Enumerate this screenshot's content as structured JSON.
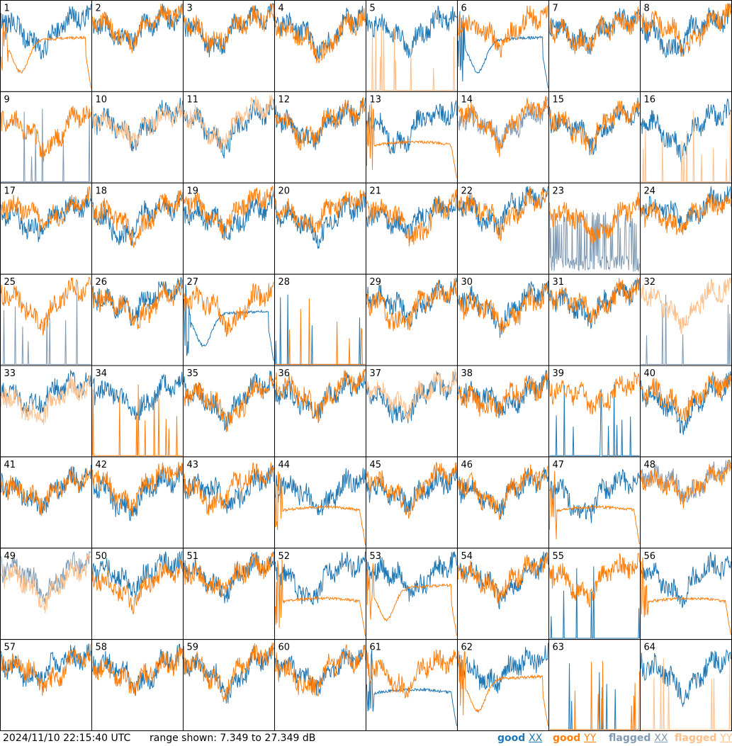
{
  "footer": {
    "timestamp": "2024/11/10 22:15:40 UTC",
    "range": "range shown: 7.349 to 27.349 dB"
  },
  "legend": [
    {
      "state": "good",
      "pol": "XX",
      "color": "#1f77b4"
    },
    {
      "state": "good",
      "pol": "YY",
      "color": "#ff7f0e"
    },
    {
      "state": "flagged",
      "pol": "XX",
      "color": "#7f9ab4"
    },
    {
      "state": "flagged",
      "pol": "YY",
      "color": "#ffbf8a"
    }
  ],
  "chart_data": {
    "type": "line",
    "ylim": [
      7.349,
      27.349
    ],
    "grid_rows": 8,
    "grid_cols": 8,
    "panels": [
      {
        "label": "1",
        "xx": "good",
        "yy": "good",
        "yy_style": "smooth_dip"
      },
      {
        "label": "2",
        "xx": "good",
        "yy": "good"
      },
      {
        "label": "3",
        "xx": "good",
        "yy": "good"
      },
      {
        "label": "4",
        "xx": "good",
        "yy": "good"
      },
      {
        "label": "5",
        "xx": "good",
        "yy": "flagged",
        "yy_style": "sparse"
      },
      {
        "label": "6",
        "xx": "good",
        "yy": "good",
        "xx_style": "smooth_dip"
      },
      {
        "label": "7",
        "xx": "good",
        "yy": "good"
      },
      {
        "label": "8",
        "xx": "good",
        "yy": "good"
      },
      {
        "label": "9",
        "xx": "flagged",
        "yy": "good",
        "xx_style": "sparse"
      },
      {
        "label": "10",
        "xx": "good",
        "yy": "flagged"
      },
      {
        "label": "11",
        "xx": "good",
        "yy": "flagged"
      },
      {
        "label": "12",
        "xx": "good",
        "yy": "good"
      },
      {
        "label": "13",
        "xx": "good",
        "yy": "good",
        "yy_style": "smooth_flat"
      },
      {
        "label": "14",
        "xx": "flagged",
        "yy": "good"
      },
      {
        "label": "15",
        "xx": "good",
        "yy": "good"
      },
      {
        "label": "16",
        "xx": "good",
        "yy": "flagged",
        "yy_style": "sparse"
      },
      {
        "label": "17",
        "xx": "good",
        "yy": "good"
      },
      {
        "label": "18",
        "xx": "good",
        "yy": "good"
      },
      {
        "label": "19",
        "xx": "good",
        "yy": "good"
      },
      {
        "label": "20",
        "xx": "good",
        "yy": "good"
      },
      {
        "label": "21",
        "xx": "good",
        "yy": "good"
      },
      {
        "label": "22",
        "xx": "good",
        "yy": "good"
      },
      {
        "label": "23",
        "xx": "flagged",
        "yy": "good",
        "xx_style": "noisy_low"
      },
      {
        "label": "24",
        "xx": "good",
        "yy": "good"
      },
      {
        "label": "25",
        "xx": "flagged",
        "yy": "good",
        "xx_style": "sparse"
      },
      {
        "label": "26",
        "xx": "good",
        "yy": "good"
      },
      {
        "label": "27",
        "xx": "good",
        "yy": "good",
        "xx_style": "smooth_dip"
      },
      {
        "label": "28",
        "xx": "good",
        "yy": "good",
        "xx_style": "sparse",
        "yy_style": "sparse"
      },
      {
        "label": "29",
        "xx": "good",
        "yy": "good"
      },
      {
        "label": "30",
        "xx": "good",
        "yy": "good"
      },
      {
        "label": "31",
        "xx": "good",
        "yy": "good"
      },
      {
        "label": "32",
        "xx": "flagged",
        "yy": "flagged",
        "xx_style": "sparse"
      },
      {
        "label": "33",
        "xx": "good",
        "yy": "flagged"
      },
      {
        "label": "34",
        "xx": "good",
        "yy": "good",
        "yy_style": "sparse"
      },
      {
        "label": "35",
        "xx": "good",
        "yy": "good"
      },
      {
        "label": "36",
        "xx": "good",
        "yy": "good"
      },
      {
        "label": "37",
        "xx": "good",
        "yy": "flagged"
      },
      {
        "label": "38",
        "xx": "good",
        "yy": "good"
      },
      {
        "label": "39",
        "xx": "good",
        "yy": "good",
        "xx_style": "sparse"
      },
      {
        "label": "40",
        "xx": "good",
        "yy": "good"
      },
      {
        "label": "41",
        "xx": "good",
        "yy": "good"
      },
      {
        "label": "42",
        "xx": "good",
        "yy": "good"
      },
      {
        "label": "43",
        "xx": "good",
        "yy": "good"
      },
      {
        "label": "44",
        "xx": "good",
        "yy": "good",
        "yy_style": "smooth_flat"
      },
      {
        "label": "45",
        "xx": "good",
        "yy": "good"
      },
      {
        "label": "46",
        "xx": "good",
        "yy": "good"
      },
      {
        "label": "47",
        "xx": "good",
        "yy": "good",
        "yy_style": "smooth_flat"
      },
      {
        "label": "48",
        "xx": "flagged",
        "yy": "good"
      },
      {
        "label": "49",
        "xx": "flagged",
        "yy": "flagged"
      },
      {
        "label": "50",
        "xx": "good",
        "yy": "good"
      },
      {
        "label": "51",
        "xx": "good",
        "yy": "good"
      },
      {
        "label": "52",
        "xx": "good",
        "yy": "good",
        "yy_style": "smooth_flat"
      },
      {
        "label": "53",
        "xx": "good",
        "yy": "good",
        "yy_style": "smooth_dip"
      },
      {
        "label": "54",
        "xx": "good",
        "yy": "good"
      },
      {
        "label": "55",
        "xx": "good",
        "yy": "good",
        "xx_style": "sparse"
      },
      {
        "label": "56",
        "xx": "good",
        "yy": "good",
        "yy_style": "smooth_flat"
      },
      {
        "label": "57",
        "xx": "good",
        "yy": "good"
      },
      {
        "label": "58",
        "xx": "good",
        "yy": "good"
      },
      {
        "label": "59",
        "xx": "good",
        "yy": "good"
      },
      {
        "label": "60",
        "xx": "good",
        "yy": "good"
      },
      {
        "label": "61",
        "xx": "good",
        "yy": "good",
        "xx_style": "smooth_flat"
      },
      {
        "label": "62",
        "xx": "good",
        "yy": "good",
        "yy_style": "smooth_dip"
      },
      {
        "label": "63",
        "xx": "good",
        "yy": "good",
        "xx_style": "sparse",
        "yy_style": "sparse"
      },
      {
        "label": "64",
        "xx": "good",
        "yy": "flagged",
        "yy_style": "sparse"
      }
    ]
  }
}
